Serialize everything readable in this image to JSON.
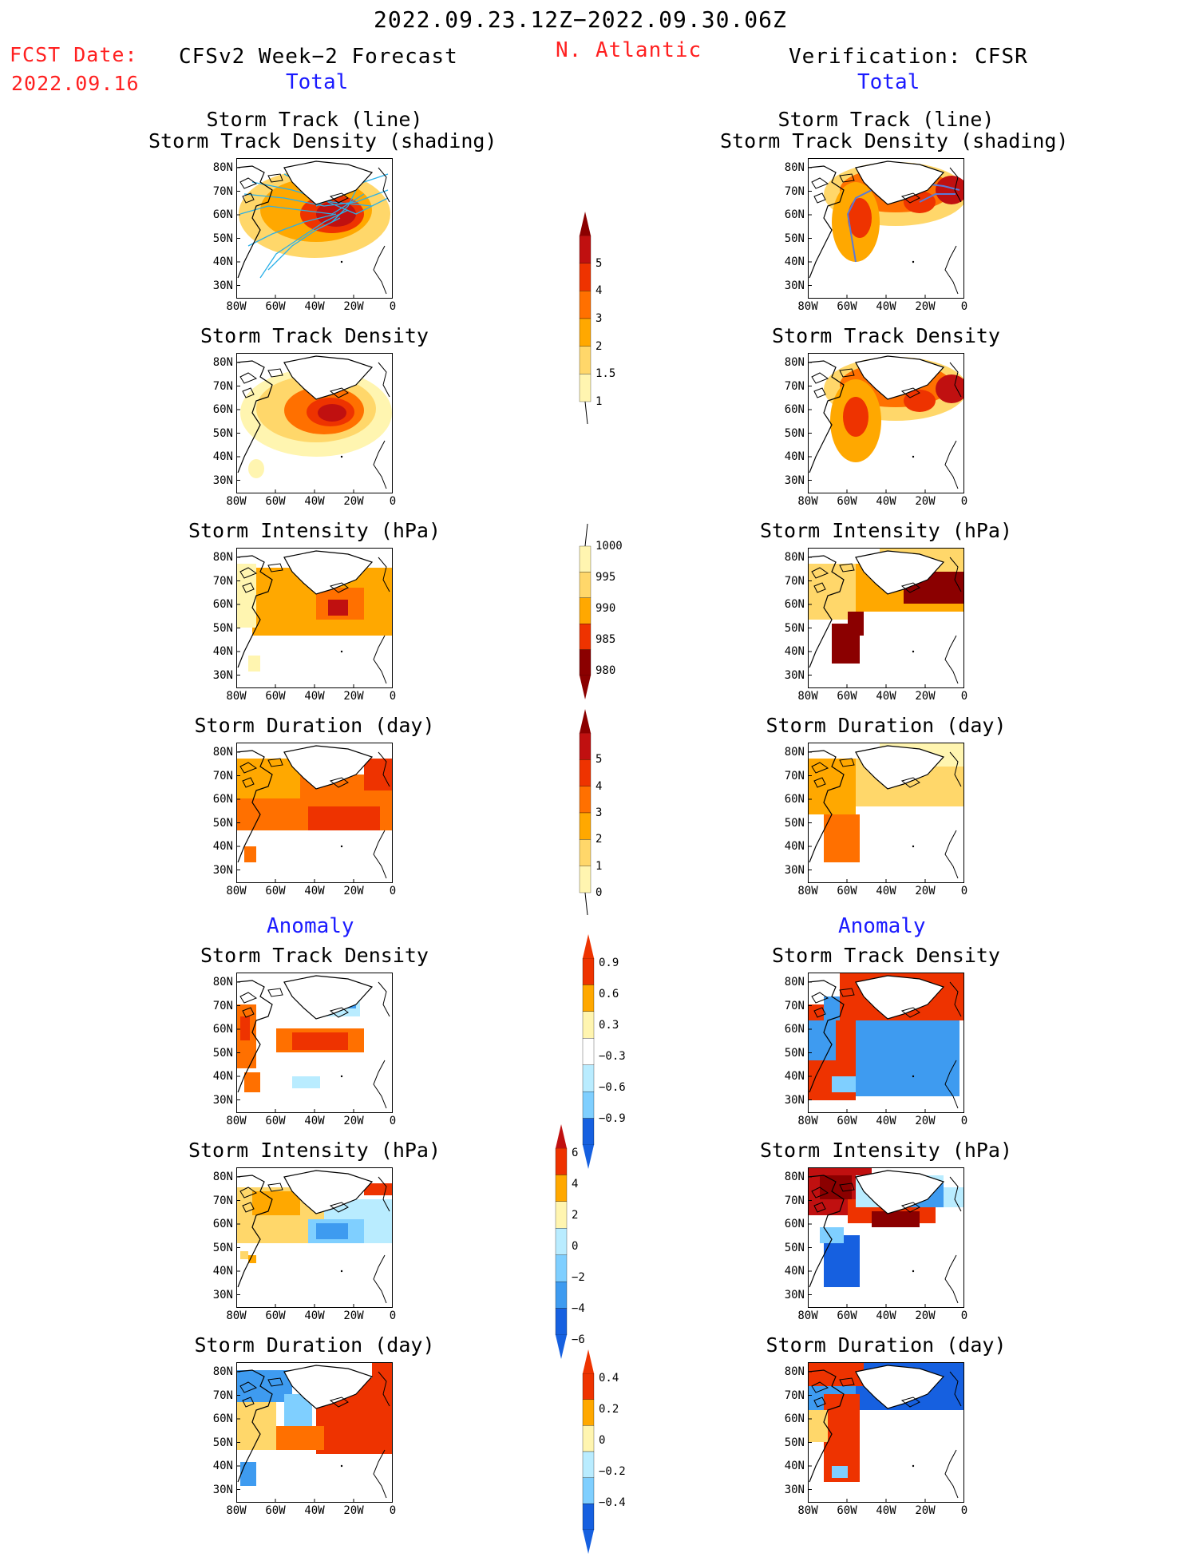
{
  "header": {
    "period": "2022.09.23.12Z−2022.09.30.06Z",
    "fcst_label": "FCST Date:",
    "fcst_date": "2022.09.16",
    "region": "N. Atlantic",
    "left_title": "CFSv2 Week−2 Forecast",
    "right_title": "Verification: CFSR"
  },
  "sections": {
    "total_left": "Total",
    "total_right": "Total",
    "anomaly_left": "Anomaly",
    "anomaly_right": "Anomaly"
  },
  "panel_titles": {
    "track_line": "Storm Track (line)",
    "track_shading": "Storm Track Density (shading)",
    "density": "Storm Track Density",
    "intensity": "Storm Intensity (hPa)",
    "duration": "Storm Duration (day)"
  },
  "axes": {
    "lat_ticks": [
      "80N",
      "70N",
      "60N",
      "50N",
      "40N",
      "30N"
    ],
    "lon_ticks": [
      "80W",
      "60W",
      "40W",
      "20W",
      "0"
    ]
  },
  "colorbars": {
    "density_total": [
      "5",
      "4",
      "3",
      "2",
      "1.5",
      "1"
    ],
    "intensity_total": [
      "1000",
      "995",
      "990",
      "985",
      "980"
    ],
    "duration_total": [
      "5",
      "4",
      "3",
      "2",
      "1",
      "0"
    ],
    "density_anom": [
      "0.9",
      "0.6",
      "0.3",
      "−0.3",
      "−0.6",
      "−0.9"
    ],
    "intensity_anom": [
      "6",
      "4",
      "2",
      "0",
      "−2",
      "−4",
      "−6"
    ],
    "duration_anom": [
      "0.4",
      "0.2",
      "0",
      "−0.2",
      "−0.4"
    ]
  },
  "colors": {
    "title_red": "#ff2020",
    "section_blue": "#1a1aff",
    "warm": [
      "#fff5b0",
      "#ffd76a",
      "#ffa800",
      "#ff7000",
      "#ee3300",
      "#c01010",
      "#8b0000"
    ],
    "cool": [
      "#b9ecff",
      "#7fcfff",
      "#3e9bf0",
      "#1660e0"
    ]
  }
}
